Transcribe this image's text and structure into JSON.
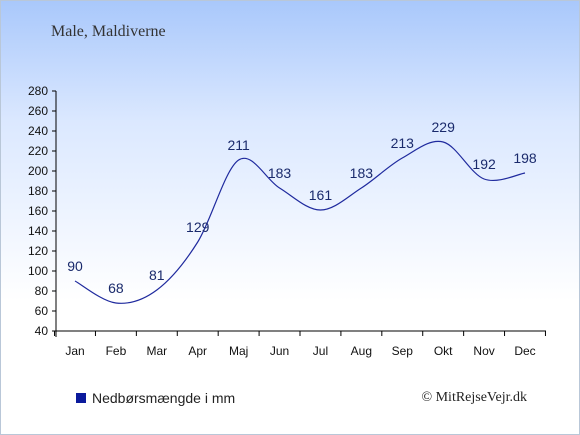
{
  "subtitle": "Male, Maldiverne",
  "legend_label": "Nedbørsmængde i mm",
  "credit": "© MitRejseVejr.dk",
  "colors": {
    "line": "#1f2a9e",
    "legend_swatch": "#0b1a9c",
    "labels": "#1a2a6c"
  },
  "chart_data": {
    "type": "line",
    "title": "",
    "xlabel": "",
    "ylabel": "",
    "categories": [
      "Jan",
      "Feb",
      "Mar",
      "Apr",
      "Maj",
      "Jun",
      "Jul",
      "Aug",
      "Sep",
      "Okt",
      "Nov",
      "Dec"
    ],
    "series": [
      {
        "name": "Nedbørsmængde i mm",
        "values": [
          90,
          68,
          81,
          129,
          211,
          183,
          161,
          183,
          213,
          229,
          192,
          198
        ]
      }
    ],
    "ylim": [
      40,
      280
    ],
    "yticks": [
      40,
      60,
      80,
      100,
      120,
      140,
      160,
      180,
      200,
      220,
      240,
      260,
      280
    ],
    "grid": false,
    "legend_position": "bottom-left"
  }
}
